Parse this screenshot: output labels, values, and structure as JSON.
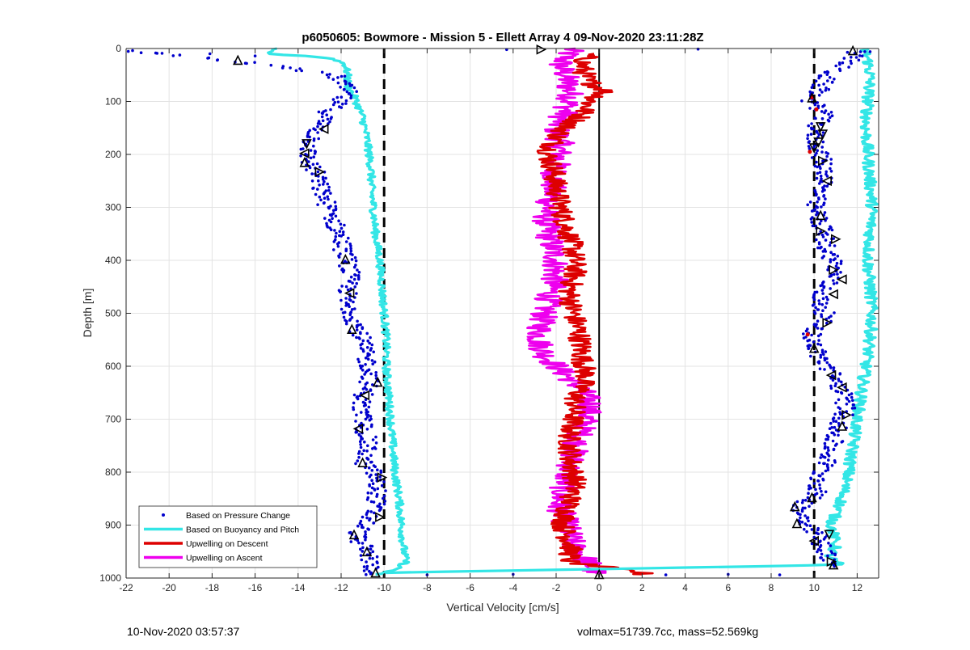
{
  "footer": {
    "left_text": "10-Nov-2020 03:57:37",
    "right_text": "volmax=51739.7cc, mass=52.569kg"
  },
  "chart_data": {
    "type": "scatter",
    "title": "p6050605: Bowmore - Mission 5 - Ellett Array 4 09-Nov-2020 23:11:28Z",
    "xlabel": "Vertical Velocity [cm/s]",
    "ylabel": "Depth [m]",
    "xlim": [
      -22,
      13
    ],
    "ylim": [
      0,
      1000
    ],
    "y_reversed": true,
    "xticks": [
      -22,
      -20,
      -18,
      -16,
      -14,
      -12,
      -10,
      -8,
      -6,
      -4,
      -2,
      0,
      2,
      4,
      6,
      8,
      10,
      12
    ],
    "yticks": [
      0,
      100,
      200,
      300,
      400,
      500,
      600,
      700,
      800,
      900,
      1000
    ],
    "grid": true,
    "legend_position": "bottom-left",
    "reference_lines": [
      {
        "x": -10,
        "style": "dashed",
        "color": "#000000"
      },
      {
        "x": 0,
        "style": "solid",
        "color": "#000000"
      },
      {
        "x": 10,
        "style": "dashed",
        "color": "#000000"
      }
    ],
    "series": [
      {
        "name": "Based on Pressure Change",
        "kind": "points",
        "color": "#0000cc",
        "descent": {
          "depth": [
            5,
            25,
            50,
            80,
            100,
            120,
            140,
            160,
            180,
            200,
            220,
            240,
            260,
            280,
            300,
            320,
            340,
            360,
            380,
            400,
            420,
            440,
            460,
            480,
            500,
            520,
            540,
            560,
            580,
            600,
            620,
            640,
            660,
            680,
            700,
            720,
            740,
            760,
            780,
            800,
            820,
            840,
            860,
            880,
            900,
            920,
            940,
            960,
            980,
            995
          ],
          "velocity": [
            -21.6,
            -16.6,
            -12.3,
            -11.7,
            -12.1,
            -12.6,
            -12.9,
            -13.2,
            -13.4,
            -13.6,
            -13.4,
            -13.1,
            -13.0,
            -12.8,
            -12.6,
            -12.4,
            -12.2,
            -12.0,
            -11.9,
            -11.7,
            -11.6,
            -11.6,
            -11.7,
            -11.8,
            -11.5,
            -11.3,
            -11.1,
            -11.0,
            -10.9,
            -10.7,
            -10.6,
            -10.8,
            -11.0,
            -11.1,
            -11.0,
            -10.9,
            -10.8,
            -10.8,
            -11.0,
            -10.5,
            -10.4,
            -10.3,
            -10.4,
            -10.6,
            -10.9,
            -11.3,
            -11.0,
            -10.7,
            -10.6,
            -10.4
          ]
        },
        "ascent": {
          "depth": [
            5,
            25,
            50,
            80,
            100,
            120,
            140,
            160,
            180,
            200,
            220,
            240,
            260,
            280,
            300,
            320,
            340,
            360,
            380,
            400,
            420,
            440,
            460,
            480,
            500,
            520,
            540,
            560,
            580,
            600,
            620,
            640,
            660,
            680,
            700,
            720,
            740,
            760,
            780,
            800,
            820,
            840,
            860,
            880,
            900,
            920,
            940,
            960,
            980
          ],
          "velocity": [
            12.0,
            11.6,
            10.6,
            10.2,
            9.8,
            10.5,
            10.2,
            10.0,
            10.1,
            10.3,
            10.4,
            10.6,
            10.4,
            10.1,
            10.0,
            10.2,
            10.4,
            10.5,
            10.6,
            10.9,
            11.0,
            10.7,
            10.4,
            10.2,
            10.5,
            10.3,
            9.9,
            10.0,
            10.2,
            10.6,
            10.9,
            11.2,
            11.4,
            11.5,
            11.3,
            11.0,
            10.9,
            10.7,
            10.6,
            10.3,
            10.2,
            10.1,
            9.5,
            9.4,
            9.8,
            10.2,
            10.4,
            10.7,
            11.0
          ]
        }
      },
      {
        "name": "Based on Buoyancy and Pitch",
        "kind": "line",
        "color": "#33e6e6",
        "descent": {
          "depth": [
            0,
            10,
            15,
            20,
            30,
            50,
            70,
            90,
            110,
            130,
            150,
            170,
            200,
            230,
            260,
            300,
            350,
            400,
            450,
            500,
            550,
            600,
            650,
            700,
            750,
            800,
            850,
            900,
            940,
            970,
            985,
            993
          ],
          "velocity": [
            -15.0,
            -15.4,
            -13.3,
            -12.3,
            -11.8,
            -11.7,
            -11.7,
            -11.4,
            -11.2,
            -11.0,
            -10.9,
            -10.8,
            -10.7,
            -10.6,
            -10.6,
            -10.5,
            -10.4,
            -10.2,
            -10.1,
            -10.0,
            -9.9,
            -9.9,
            -9.8,
            -9.7,
            -9.6,
            -9.5,
            -9.3,
            -9.2,
            -9.1,
            -9.0,
            -9.5,
            -10.4
          ]
        },
        "ascent": {
          "depth": [
            0,
            20,
            50,
            100,
            150,
            200,
            250,
            300,
            350,
            400,
            450,
            500,
            550,
            600,
            650,
            700,
            750,
            800,
            850,
            880,
            900,
            920,
            940,
            960,
            975,
            990
          ],
          "velocity": [
            12.3,
            12.5,
            12.6,
            12.5,
            12.4,
            12.5,
            12.6,
            12.7,
            12.6,
            12.5,
            12.6,
            12.7,
            12.6,
            12.4,
            12.2,
            12.0,
            11.8,
            11.6,
            11.3,
            11.0,
            10.8,
            10.9,
            11.0,
            10.7,
            11.2,
            -9.8
          ]
        }
      },
      {
        "name": "Upwelling on Descent",
        "kind": "line",
        "color": "#dd0000",
        "depth": [
          10,
          30,
          60,
          80,
          100,
          130,
          150,
          170,
          200,
          230,
          260,
          300,
          340,
          380,
          420,
          460,
          500,
          540,
          580,
          620,
          660,
          700,
          740,
          780,
          820,
          860,
          900,
          940,
          970,
          990,
          993
        ],
        "velocity": [
          -0.5,
          -0.8,
          -0.6,
          0.3,
          -0.4,
          -0.9,
          -1.6,
          -2.0,
          -2.4,
          -2.1,
          -2.0,
          -1.8,
          -1.5,
          -1.2,
          -1.1,
          -1.4,
          -1.2,
          -0.9,
          -0.8,
          -0.6,
          -1.1,
          -1.2,
          -1.4,
          -1.3,
          -1.1,
          -1.4,
          -1.7,
          -1.3,
          -1.4,
          2.0,
          2.0
        ]
      },
      {
        "name": "Upwelling on Ascent",
        "kind": "line",
        "color": "#ee00ee",
        "depth": [
          0,
          30,
          60,
          90,
          120,
          150,
          180,
          210,
          240,
          270,
          300,
          330,
          360,
          400,
          440,
          480,
          520,
          550,
          580,
          610,
          640,
          670,
          700,
          740,
          780,
          820,
          860,
          900,
          940,
          970,
          990
        ],
        "velocity": [
          -1.3,
          -1.8,
          -1.5,
          -1.3,
          -1.6,
          -2.0,
          -1.8,
          -1.9,
          -2.1,
          -2.2,
          -2.4,
          -2.5,
          -2.3,
          -2.0,
          -2.1,
          -2.4,
          -2.7,
          -2.8,
          -2.5,
          -1.7,
          -0.9,
          -0.4,
          -0.6,
          -1.0,
          -1.3,
          -1.6,
          -1.9,
          -1.5,
          -1.2,
          -0.5,
          -0.2
        ]
      }
    ],
    "markers": {
      "description": "black triangle markers on profiles",
      "points": [
        {
          "x": -16.8,
          "depth": 22,
          "dir": "up"
        },
        {
          "x": -12.8,
          "depth": 152,
          "dir": "left"
        },
        {
          "x": -13.6,
          "depth": 180,
          "dir": "down"
        },
        {
          "x": -13.7,
          "depth": 198,
          "dir": "left"
        },
        {
          "x": -13.7,
          "depth": 215,
          "dir": "up"
        },
        {
          "x": -13.0,
          "depth": 233,
          "dir": "right"
        },
        {
          "x": -11.8,
          "depth": 398,
          "dir": "up"
        },
        {
          "x": -11.6,
          "depth": 462,
          "dir": "left"
        },
        {
          "x": -11.5,
          "depth": 530,
          "dir": "up"
        },
        {
          "x": -10.3,
          "depth": 630,
          "dir": "up"
        },
        {
          "x": -10.9,
          "depth": 655,
          "dir": "left"
        },
        {
          "x": -11.2,
          "depth": 718,
          "dir": "left"
        },
        {
          "x": -11.0,
          "depth": 782,
          "dir": "up"
        },
        {
          "x": -10.1,
          "depth": 810,
          "dir": "right"
        },
        {
          "x": -10.2,
          "depth": 885,
          "dir": "right"
        },
        {
          "x": -11.4,
          "depth": 918,
          "dir": "up"
        },
        {
          "x": -10.8,
          "depth": 950,
          "dir": "up"
        },
        {
          "x": -10.4,
          "depth": 990,
          "dir": "up"
        },
        {
          "x": -2.7,
          "depth": 2,
          "dir": "right"
        },
        {
          "x": 0.0,
          "depth": 993,
          "dir": "up"
        },
        {
          "x": 11.8,
          "depth": 4,
          "dir": "up"
        },
        {
          "x": 9.9,
          "depth": 93,
          "dir": "up"
        },
        {
          "x": 10.3,
          "depth": 148,
          "dir": "down"
        },
        {
          "x": 10.4,
          "depth": 162,
          "dir": "down"
        },
        {
          "x": 10.2,
          "depth": 177,
          "dir": "down"
        },
        {
          "x": 10.0,
          "depth": 188,
          "dir": "down"
        },
        {
          "x": 10.4,
          "depth": 212,
          "dir": "right"
        },
        {
          "x": 10.6,
          "depth": 250,
          "dir": "left"
        },
        {
          "x": 10.3,
          "depth": 315,
          "dir": "up"
        },
        {
          "x": 10.3,
          "depth": 345,
          "dir": "right"
        },
        {
          "x": 11.0,
          "depth": 360,
          "dir": "right"
        },
        {
          "x": 10.9,
          "depth": 418,
          "dir": "right"
        },
        {
          "x": 11.3,
          "depth": 436,
          "dir": "left"
        },
        {
          "x": 10.9,
          "depth": 464,
          "dir": "left"
        },
        {
          "x": 10.6,
          "depth": 518,
          "dir": "right"
        },
        {
          "x": 10.0,
          "depth": 566,
          "dir": "up"
        },
        {
          "x": 10.8,
          "depth": 617,
          "dir": "left"
        },
        {
          "x": 11.3,
          "depth": 640,
          "dir": "left"
        },
        {
          "x": 11.5,
          "depth": 692,
          "dir": "right"
        },
        {
          "x": 11.3,
          "depth": 713,
          "dir": "up"
        },
        {
          "x": 9.9,
          "depth": 848,
          "dir": "up"
        },
        {
          "x": 9.1,
          "depth": 865,
          "dir": "up"
        },
        {
          "x": 9.2,
          "depth": 897,
          "dir": "up"
        },
        {
          "x": 10.7,
          "depth": 918,
          "dir": "down"
        },
        {
          "x": 10.0,
          "depth": 930,
          "dir": "left"
        },
        {
          "x": 10.8,
          "depth": 969,
          "dir": "right"
        },
        {
          "x": 10.9,
          "depth": 975,
          "dir": "up"
        }
      ]
    }
  }
}
